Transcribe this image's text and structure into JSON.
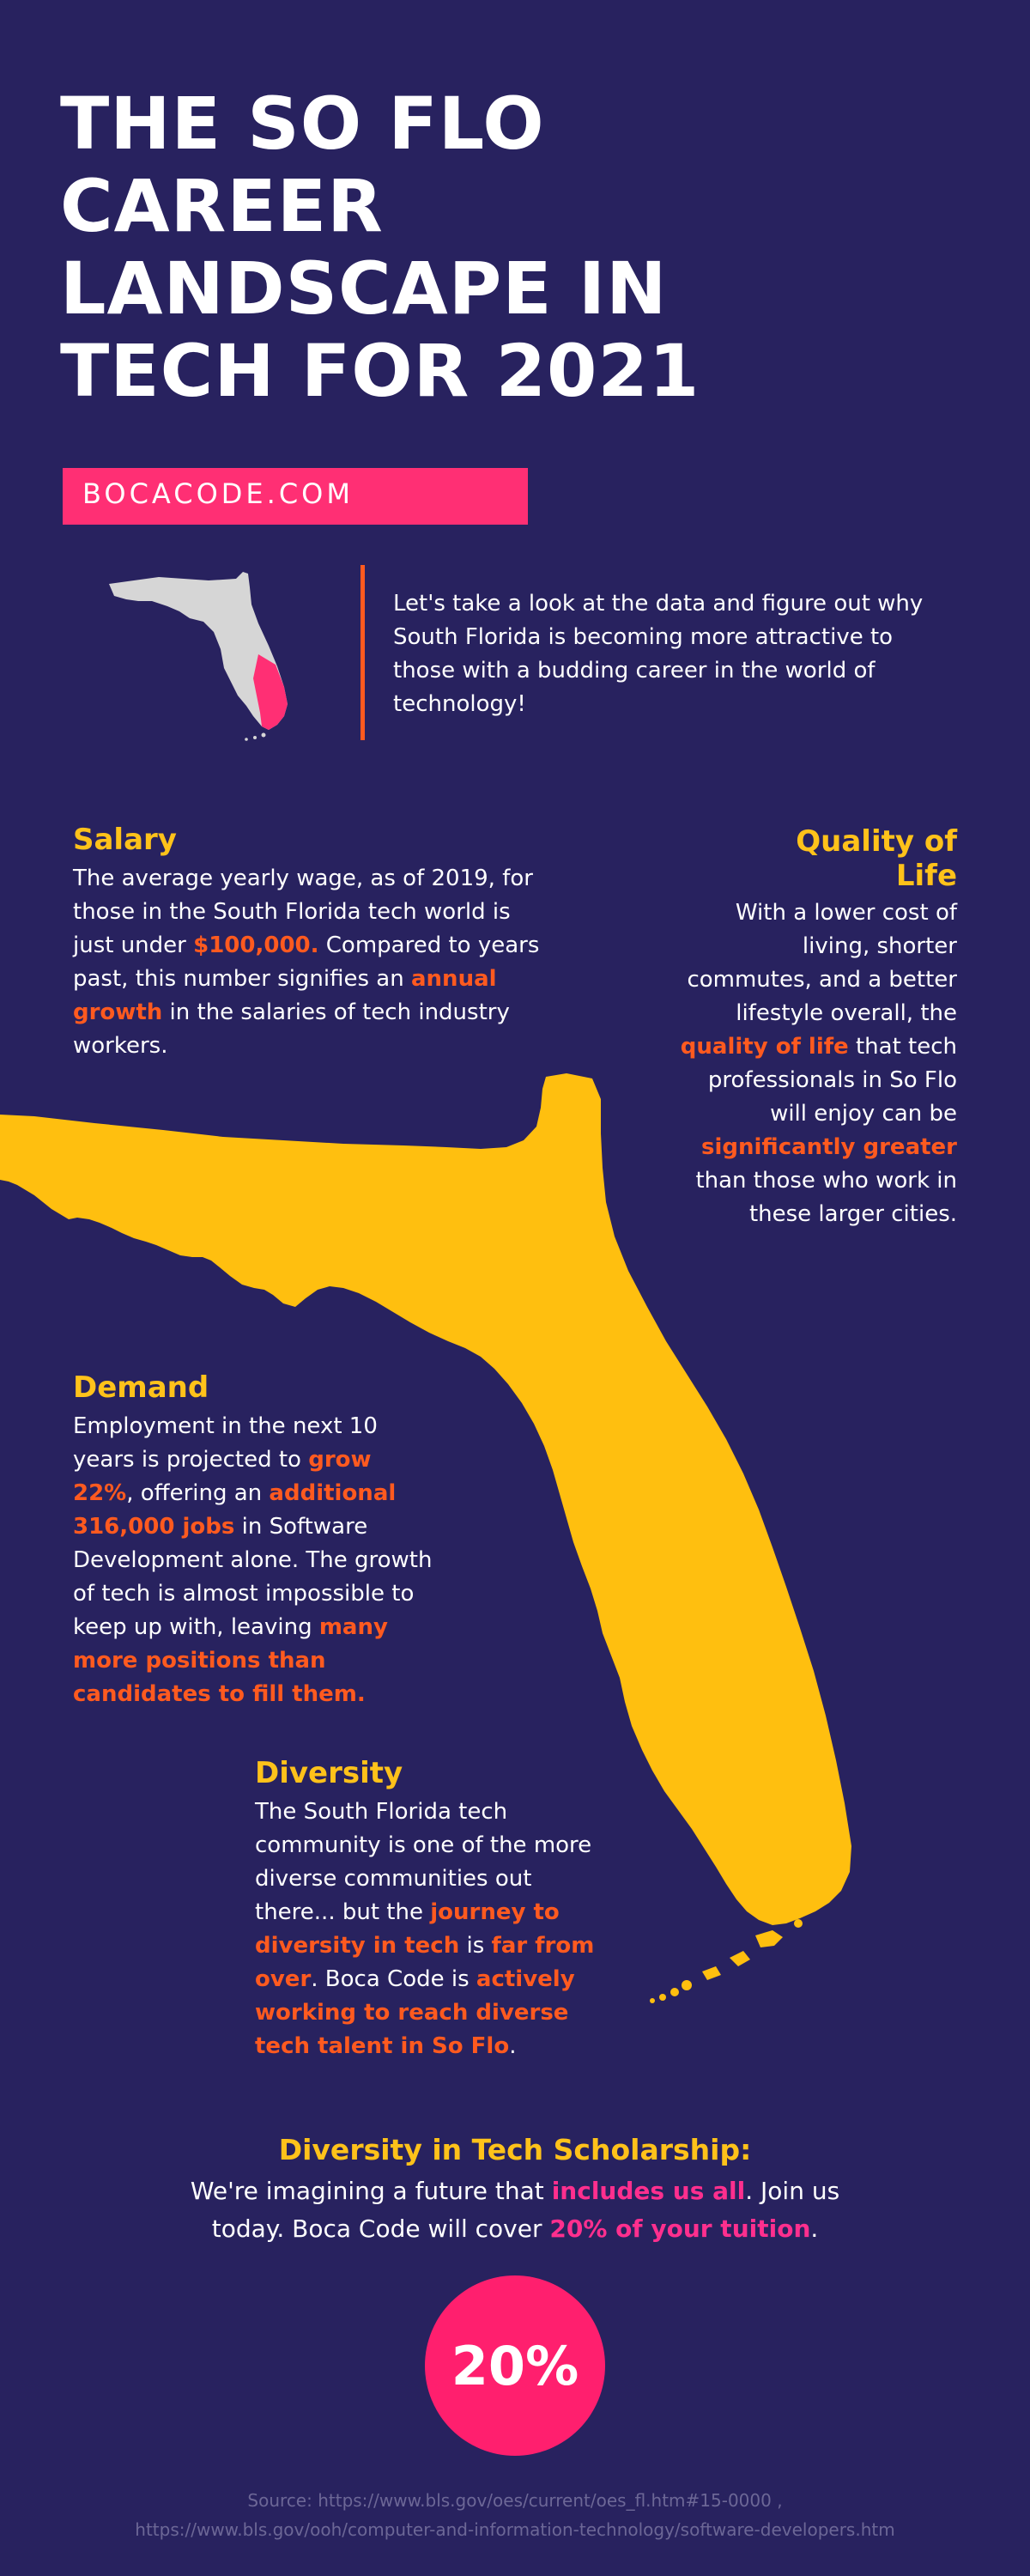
{
  "header": {
    "title_lines": [
      "THE SO FLO",
      "CAREER",
      "LANDSCAPE IN",
      "TECH FOR 2021"
    ],
    "site": "BOCACODE.COM"
  },
  "intro": {
    "text": "Let's take a look at the data and figure out why South Florida is becoming more attractive to those with a budding career in the world of technology!"
  },
  "salary": {
    "heading": "Salary",
    "t1": "The average yearly wage, as of 2019, for those in the South Florida tech world is just under ",
    "h1": "$100,000.",
    "t2": " Compared to years past, this number signifies an ",
    "h2": "annual growth",
    "t3": " in the salaries of tech industry workers."
  },
  "quality": {
    "heading_line1": "Quality of",
    "heading_line2": "Life",
    "t1": "With a lower cost of living, shorter commutes, and a better lifestyle overall, the ",
    "h1": "quality of life",
    "t2": " that tech professionals in So Flo will enjoy can be ",
    "h2": "significantly greater",
    "t3": " than those who work in these larger cities."
  },
  "demand": {
    "heading": "Demand",
    "t1": "Employment in the next 10 years is projected to ",
    "h1": "grow 22%",
    "t2": ", offering an ",
    "h2": "additional 316,000 jobs",
    "t3": " in Software Development alone. The growth of tech is almost impossible to keep up with, leaving ",
    "h3": "many more positions than candidates to fill them."
  },
  "diversity": {
    "heading": "Diversity",
    "t1": "The South Florida tech community is one of the more diverse communities out there... but the ",
    "h1": "journey to diversity in tech",
    "t2": " is ",
    "h2": "far from over",
    "t3": ". Boca Code is ",
    "h3": "actively working to reach diverse tech talent in So Flo",
    "t4": "."
  },
  "scholarship": {
    "heading": "Diversity in Tech Scholarship:",
    "t1": "We're imagining a future that ",
    "h1": "includes us all",
    "t2": ". Join us today. Boca Code will cover ",
    "h2": "20% of your tuition",
    "t3": ".",
    "badge": "20%"
  },
  "source": {
    "line1": "Source: https://www.bls.gov/oes/current/oes_fl.htm#15-0000 ,",
    "line2": "https://www.bls.gov/ooh/computer-and-information-technology/software-developers.htm"
  },
  "colors": {
    "background": "#28225f",
    "accent_yellow": "#ffc21a",
    "accent_orange": "#ff5a1f",
    "accent_pink": "#ff2f74",
    "map_grey": "#d6d6d6"
  },
  "icons": [
    "florida-map-small-icon",
    "florida-map-large-icon"
  ]
}
